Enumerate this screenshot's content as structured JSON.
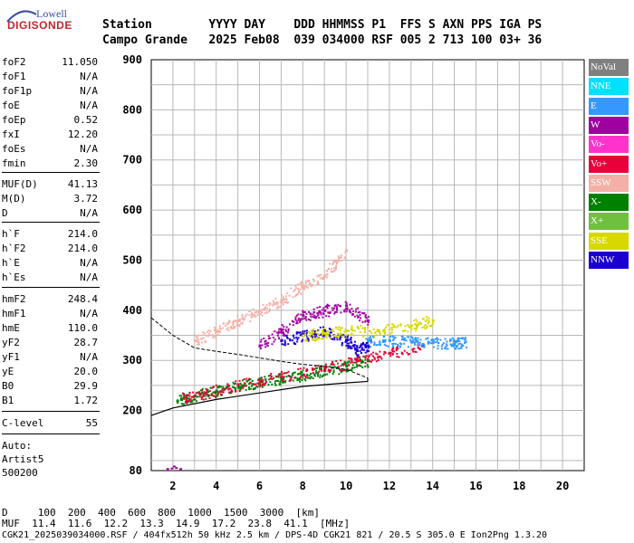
{
  "logo": {
    "top": "Lowell",
    "main": "DIGISONDE"
  },
  "header": {
    "line1": "Station        YYYY DAY    DDD HHMMSS P1  FFS S AXN PPS IGA PS",
    "line2": "Campo Grande   2025 Feb08  039 034000 RSF 005 2 713 100 03+ 36"
  },
  "params": [
    {
      "name": "foF2",
      "value": "11.050"
    },
    {
      "name": "foF1",
      "value": "N/A"
    },
    {
      "name": "foF1p",
      "value": "N/A"
    },
    {
      "name": "foE",
      "value": "N/A"
    },
    {
      "name": "foEp",
      "value": "0.52"
    },
    {
      "name": "fxI",
      "value": "12.20"
    },
    {
      "name": "foEs",
      "value": "N/A"
    },
    {
      "name": "fmin",
      "value": "2.30"
    },
    {
      "name": "MUF(D)",
      "value": "41.13"
    },
    {
      "name": "M(D)",
      "value": "3.72"
    },
    {
      "name": "D",
      "value": "N/A"
    },
    {
      "name": "h`F",
      "value": "214.0"
    },
    {
      "name": "h`F2",
      "value": "214.0"
    },
    {
      "name": "h`E",
      "value": "N/A"
    },
    {
      "name": "h`Es",
      "value": "N/A"
    },
    {
      "name": "hmF2",
      "value": "248.4"
    },
    {
      "name": "hmF1",
      "value": "N/A"
    },
    {
      "name": "hmE",
      "value": "110.0"
    },
    {
      "name": "yF2",
      "value": "28.7"
    },
    {
      "name": "yF1",
      "value": "N/A"
    },
    {
      "name": "yE",
      "value": "20.0"
    },
    {
      "name": "B0",
      "value": "29.9"
    },
    {
      "name": "B1",
      "value": "1.72"
    },
    {
      "name": "C-level",
      "value": "55"
    }
  ],
  "auto": {
    "line1": "Auto:",
    "line2": "Artist5",
    "line3": "500200"
  },
  "legend": [
    {
      "label": "NoVal",
      "color": "#808080"
    },
    {
      "label": "NNE",
      "color": "#00e0ff"
    },
    {
      "label": "E",
      "color": "#3399ff"
    },
    {
      "label": "W",
      "color": "#a000a0"
    },
    {
      "label": "Vo-",
      "color": "#ff33cc"
    },
    {
      "label": "Vo+",
      "color": "#e8003a"
    },
    {
      "label": "SSW",
      "color": "#f4b0a8"
    },
    {
      "label": "X-",
      "color": "#008000"
    },
    {
      "label": "X+",
      "color": "#70c040"
    },
    {
      "label": "SSE",
      "color": "#d8d800"
    },
    {
      "label": "NNW",
      "color": "#1a00d0"
    }
  ],
  "chart_data": {
    "type": "scatter",
    "title": "",
    "xlabel": "",
    "ylabel": "",
    "xlim": [
      1,
      21
    ],
    "ylim": [
      80,
      900
    ],
    "x_ticks": [
      "2",
      "4",
      "6",
      "8",
      "10",
      "12",
      "14",
      "16",
      "18",
      "20"
    ],
    "y_ticks": [
      "80",
      "200",
      "300",
      "400",
      "500",
      "600",
      "700",
      "800",
      "900"
    ],
    "grid": true,
    "series": [
      {
        "name": "X-",
        "points": [
          [
            2.2,
            220
          ],
          [
            3,
            230
          ],
          [
            4,
            240
          ],
          [
            5,
            250
          ],
          [
            6,
            258
          ],
          [
            7,
            265
          ],
          [
            8,
            272
          ],
          [
            9,
            280
          ],
          [
            10,
            290
          ],
          [
            11,
            300
          ]
        ]
      },
      {
        "name": "Vo+",
        "points": [
          [
            2.5,
            225
          ],
          [
            3.5,
            235
          ],
          [
            5,
            252
          ],
          [
            7,
            268
          ],
          [
            9,
            285
          ],
          [
            10.5,
            300
          ],
          [
            12,
            315
          ],
          [
            13.5,
            330
          ]
        ]
      },
      {
        "name": "SSW",
        "points": [
          [
            3,
            340
          ],
          [
            4,
            360
          ],
          [
            5,
            380
          ],
          [
            6,
            400
          ],
          [
            7,
            420
          ],
          [
            8,
            450
          ],
          [
            9,
            470
          ],
          [
            10,
            520
          ]
        ]
      },
      {
        "name": "NNW",
        "points": [
          [
            7,
            340
          ],
          [
            8,
            350
          ],
          [
            9,
            360
          ],
          [
            10,
            340
          ],
          [
            10.5,
            320
          ],
          [
            11,
            330
          ]
        ]
      },
      {
        "name": "E",
        "points": [
          [
            11,
            340
          ],
          [
            12,
            340
          ],
          [
            13,
            338
          ],
          [
            14,
            336
          ],
          [
            15,
            335
          ],
          [
            15.5,
            338
          ]
        ]
      },
      {
        "name": "SSE",
        "points": [
          [
            8,
            350
          ],
          [
            9,
            355
          ],
          [
            10,
            360
          ],
          [
            11.5,
            360
          ],
          [
            13,
            370
          ],
          [
            14,
            380
          ]
        ]
      },
      {
        "name": "W",
        "points": [
          [
            6,
            330
          ],
          [
            7,
            360
          ],
          [
            8,
            390
          ],
          [
            9,
            400
          ],
          [
            10,
            410
          ],
          [
            11,
            380
          ]
        ]
      }
    ],
    "profile_curve": [
      [
        1,
        190
      ],
      [
        2,
        205
      ],
      [
        4,
        222
      ],
      [
        6,
        235
      ],
      [
        8,
        248
      ],
      [
        10,
        255
      ],
      [
        11,
        258
      ]
    ]
  },
  "bottom": {
    "line1": "D     100  200  400  600  800  1000  1500  3000  [km]",
    "line2": "MUF  11.4  11.6  12.2  13.3  14.9  17.2  23.8  41.1  [MHz]",
    "line3": "CGK21_2025039034000.RSF / 404fx512h 50 kHz 2.5 km / DPS-4D CGK21 821 / 20.5 S 305.0 E Ion2Png 1.3.20"
  }
}
